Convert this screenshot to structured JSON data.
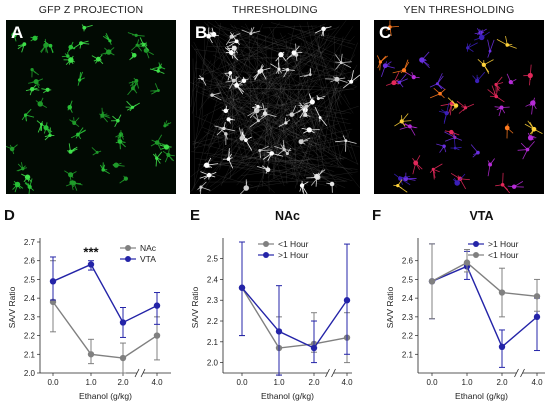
{
  "micrographs": [
    {
      "letter": "A",
      "title": "GFP Z PROJECTION",
      "palette": [
        "#1f9a2a",
        "#28c037",
        "#3fe04a"
      ],
      "bg": "#020a03"
    },
    {
      "letter": "B",
      "title": "THRESHOLDING",
      "palette": [
        "#ffffff",
        "#e6e6e6",
        "#cfcfcf"
      ],
      "bg": "#000000"
    },
    {
      "letter": "C",
      "title": "YEN THRESHOLDING",
      "palette": [
        "#ffd23a",
        "#ff7a1f",
        "#e2285a",
        "#b52bd6",
        "#6a2fe0",
        "#3a1fb8"
      ],
      "bg": "#000000"
    }
  ],
  "chart_data": [
    {
      "panel": "D",
      "type": "line",
      "title": "",
      "xlabel": "Ethanol (g/kg)",
      "ylabel": "SA/V Ratio",
      "x_tick_labels": [
        "0.0",
        "1.0",
        "2.0",
        "4.0"
      ],
      "y_ticks": [
        "2.0",
        "2.1",
        "2.2",
        "2.3",
        "2.4",
        "2.5",
        "2.6",
        "2.7"
      ],
      "ylim": [
        2.0,
        2.7
      ],
      "axis_break": true,
      "annotation": "***",
      "legend_position": "top-right",
      "series": [
        {
          "name": "NAc",
          "color": "#808080",
          "values": [
            2.38,
            2.1,
            2.08,
            2.2
          ],
          "err_upper": [
            2.6,
            2.18,
            2.16,
            2.3
          ],
          "err_lower": [
            2.22,
            2.05,
            2.0,
            2.07
          ]
        },
        {
          "name": "VTA",
          "color": "#2424a8",
          "values": [
            2.49,
            2.58,
            2.27,
            2.36
          ],
          "err_upper": [
            2.62,
            2.6,
            2.35,
            2.43
          ],
          "err_lower": [
            2.39,
            2.55,
            2.19,
            2.26
          ]
        }
      ]
    },
    {
      "panel": "E",
      "type": "line",
      "title": "NAc",
      "xlabel": "Ethanol (g/kg)",
      "ylabel": "SA/V Ratio",
      "x_tick_labels": [
        "0.0",
        "1.0",
        "2.0",
        "4.0"
      ],
      "y_ticks": [
        "2.0",
        "2.1",
        "2.2",
        "2.3",
        "2.4",
        "2.5"
      ],
      "ylim": [
        1.95,
        2.58
      ],
      "axis_break": true,
      "legend_position": "top-left",
      "series": [
        {
          "name": "<1 Hour",
          "color": "#808080",
          "values": [
            2.36,
            2.07,
            2.09,
            2.12
          ],
          "err_upper": [
            2.58,
            2.22,
            2.24,
            2.24
          ],
          "err_lower": [
            2.13,
            1.94,
            2.05,
            2.0
          ]
        },
        {
          "name": ">1 Hour",
          "color": "#2424a8",
          "values": [
            2.36,
            2.15,
            2.07,
            2.3
          ],
          "err_upper": [
            2.58,
            2.37,
            2.2,
            2.57
          ],
          "err_lower": [
            2.13,
            1.94,
            2.0,
            2.04
          ]
        }
      ]
    },
    {
      "panel": "F",
      "type": "line",
      "title": "VTA",
      "xlabel": "Ethanol (g/kg)",
      "ylabel": "SA/V Ratio",
      "x_tick_labels": [
        "0.0",
        "1.0",
        "2.0",
        "4.0"
      ],
      "y_ticks": [
        "2.1",
        "2.2",
        "2.3",
        "2.4",
        "2.5",
        "2.6"
      ],
      "ylim": [
        2.0,
        2.7
      ],
      "axis_break": true,
      "legend_position": "top-right",
      "series": [
        {
          "name": ">1 Hour",
          "color": "#2424a8",
          "values": [
            2.49,
            2.57,
            2.14,
            2.3
          ],
          "err_upper": [
            2.69,
            2.65,
            2.23,
            2.4
          ],
          "err_lower": [
            2.29,
            2.5,
            2.03,
            2.12
          ]
        },
        {
          "name": "<1 Hour",
          "color": "#808080",
          "values": [
            2.49,
            2.59,
            2.43,
            2.41
          ],
          "err_upper": [
            2.69,
            2.66,
            2.56,
            2.5
          ],
          "err_lower": [
            2.29,
            2.54,
            2.3,
            2.33
          ]
        }
      ]
    }
  ]
}
